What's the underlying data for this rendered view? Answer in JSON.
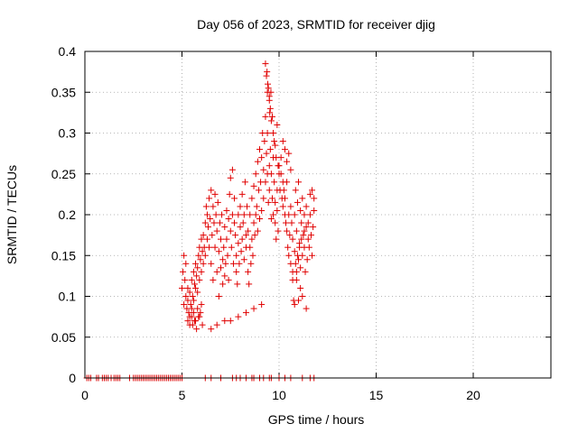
{
  "chart_data": {
    "type": "scatter",
    "title": "Day 056 of 2023, SRMTID for receiver djig",
    "xlabel": "GPS time / hours",
    "ylabel": "SRMTID / TECUs",
    "xlim": [
      0,
      24
    ],
    "ylim": [
      0,
      0.4
    ],
    "xticks": [
      0,
      5,
      10,
      15,
      20
    ],
    "xtick_labels": [
      "0",
      "5",
      "10",
      "15",
      "20"
    ],
    "yticks": [
      0,
      0.05,
      0.1,
      0.15,
      0.2,
      0.25,
      0.3,
      0.35,
      0.4
    ],
    "ytick_labels": [
      "0",
      "0.05",
      "0.1",
      "0.15",
      "0.2",
      "0.25",
      "0.3",
      "0.35",
      "0.4"
    ],
    "grid": true,
    "marker": "plus",
    "color": "#e00000",
    "series": [
      {
        "x": [
          0.1,
          0.2,
          0.3,
          0.6,
          0.7,
          0.9,
          1.0,
          1.1,
          1.2,
          1.35,
          1.5,
          1.6,
          1.7,
          1.8,
          2.3,
          2.5,
          2.6,
          2.7,
          2.8,
          2.9,
          3.0,
          3.1,
          3.2,
          3.3,
          3.4,
          3.5,
          3.6,
          3.7,
          3.8,
          3.9,
          4.0,
          4.1,
          4.2,
          4.3,
          4.4,
          4.5,
          4.6,
          4.7,
          4.8,
          4.9,
          5.0,
          6.2,
          6.5,
          7.0,
          7.6,
          7.8,
          8.0,
          8.3,
          8.6,
          8.7,
          9.0,
          9.2,
          9.5,
          9.6,
          10.0,
          10.3,
          10.6,
          11.2,
          11.6,
          11.8,
          5.0,
          5.05,
          5.1,
          5.1,
          5.15,
          5.2,
          5.2,
          5.25,
          5.3,
          5.3,
          5.35,
          5.4,
          5.4,
          5.45,
          5.5,
          5.5,
          5.55,
          5.6,
          5.6,
          5.65,
          5.7,
          5.7,
          5.75,
          5.8,
          5.8,
          5.85,
          5.9,
          5.9,
          5.95,
          6.0,
          6.0,
          6.05,
          6.1,
          6.1,
          6.15,
          6.2,
          6.2,
          6.25,
          6.3,
          6.3,
          6.35,
          6.4,
          6.4,
          6.45,
          6.5,
          6.5,
          6.55,
          6.6,
          6.6,
          6.65,
          6.7,
          6.7,
          6.75,
          6.8,
          6.8,
          6.85,
          6.9,
          6.9,
          6.95,
          7.0,
          7.0,
          7.05,
          7.1,
          7.1,
          7.15,
          7.2,
          7.2,
          7.25,
          7.3,
          7.3,
          7.35,
          7.4,
          7.4,
          7.45,
          7.5,
          7.5,
          7.55,
          7.6,
          7.6,
          7.65,
          7.7,
          7.7,
          7.75,
          7.8,
          7.8,
          7.85,
          7.9,
          7.9,
          7.95,
          8.0,
          8.0,
          8.05,
          8.1,
          8.1,
          8.15,
          8.2,
          8.2,
          8.25,
          8.3,
          8.3,
          8.35,
          8.4,
          8.4,
          8.45,
          8.5,
          8.5,
          8.55,
          8.6,
          8.6,
          8.65,
          8.7,
          8.7,
          8.75,
          8.8,
          8.8,
          8.85,
          8.9,
          8.9,
          8.95,
          9.0,
          9.0,
          9.05,
          9.1,
          9.1,
          9.15,
          9.2,
          9.2,
          9.25,
          9.3,
          9.3,
          9.35,
          9.4,
          9.4,
          9.45,
          9.5,
          9.5,
          9.55,
          9.6,
          9.6,
          9.65,
          9.7,
          9.7,
          9.75,
          9.8,
          9.8,
          9.85,
          9.9,
          9.9,
          9.95,
          10.0,
          10.0,
          10.05,
          10.1,
          10.1,
          10.15,
          10.2,
          10.2,
          10.25,
          10.3,
          10.3,
          10.35,
          10.4,
          10.4,
          10.45,
          10.5,
          10.5,
          10.55,
          10.6,
          10.6,
          10.65,
          10.7,
          10.7,
          10.75,
          10.8,
          10.8,
          10.85,
          10.9,
          10.9,
          10.95,
          11.0,
          11.0,
          11.05,
          11.1,
          11.1,
          11.15,
          11.2,
          11.2,
          11.25,
          11.3,
          11.3,
          11.35,
          11.4,
          11.4,
          11.45,
          11.5,
          11.5,
          11.55,
          11.6,
          11.6,
          11.65,
          11.7,
          11.7,
          11.75,
          11.8,
          11.8,
          9.3,
          9.35,
          9.4,
          9.45,
          9.5,
          9.55,
          9.6,
          9.65,
          9.7,
          9.75,
          9.8,
          9.85,
          9.9,
          9.95,
          10.2,
          10.3,
          10.4,
          10.5,
          10.6,
          9.38,
          9.42,
          9.5,
          9.58,
          9.52,
          5.3,
          5.4,
          5.5,
          5.6,
          5.7,
          5.8,
          5.9,
          6.0,
          5.55,
          5.65,
          5.75,
          5.85,
          5.95,
          6.05,
          6.5,
          6.8,
          7.2,
          7.5,
          7.9,
          8.3,
          8.7,
          9.1,
          10.8,
          11.0,
          11.2,
          11.4,
          10.9,
          11.1,
          10.7,
          10.85,
          10.95,
          11.05,
          11.15,
          11.3
        ],
        "y": [
          0,
          0,
          0,
          0,
          0,
          0,
          0,
          0,
          0,
          0,
          0,
          0,
          0,
          0,
          0,
          0,
          0,
          0,
          0,
          0,
          0,
          0,
          0,
          0,
          0,
          0,
          0,
          0,
          0,
          0,
          0,
          0,
          0,
          0,
          0,
          0,
          0,
          0,
          0,
          0,
          0,
          0,
          0,
          0,
          0,
          0,
          0,
          0,
          0,
          0,
          0,
          0,
          0,
          0,
          0,
          0,
          0,
          0,
          0,
          0,
          0.11,
          0.13,
          0.15,
          0.09,
          0.12,
          0.1,
          0.14,
          0.085,
          0.11,
          0.095,
          0.08,
          0.105,
          0.075,
          0.09,
          0.12,
          0.085,
          0.1,
          0.13,
          0.095,
          0.115,
          0.11,
          0.14,
          0.125,
          0.105,
          0.135,
          0.15,
          0.12,
          0.16,
          0.145,
          0.13,
          0.17,
          0.155,
          0.14,
          0.175,
          0.16,
          0.19,
          0.15,
          0.21,
          0.17,
          0.2,
          0.185,
          0.16,
          0.22,
          0.195,
          0.14,
          0.23,
          0.175,
          0.12,
          0.21,
          0.19,
          0.16,
          0.225,
          0.2,
          0.13,
          0.18,
          0.215,
          0.155,
          0.1,
          0.19,
          0.17,
          0.135,
          0.2,
          0.145,
          0.115,
          0.16,
          0.185,
          0.125,
          0.14,
          0.17,
          0.205,
          0.15,
          0.12,
          0.195,
          0.225,
          0.18,
          0.245,
          0.16,
          0.2,
          0.255,
          0.14,
          0.22,
          0.19,
          0.175,
          0.15,
          0.13,
          0.115,
          0.2,
          0.165,
          0.14,
          0.185,
          0.21,
          0.155,
          0.17,
          0.225,
          0.19,
          0.145,
          0.2,
          0.24,
          0.175,
          0.16,
          0.21,
          0.13,
          0.18,
          0.115,
          0.16,
          0.2,
          0.14,
          0.17,
          0.22,
          0.15,
          0.19,
          0.235,
          0.175,
          0.2,
          0.25,
          0.21,
          0.18,
          0.265,
          0.23,
          0.195,
          0.28,
          0.24,
          0.205,
          0.27,
          0.3,
          0.255,
          0.22,
          0.29,
          0.32,
          0.24,
          0.275,
          0.25,
          0.3,
          0.215,
          0.26,
          0.23,
          0.28,
          0.195,
          0.25,
          0.22,
          0.27,
          0.2,
          0.24,
          0.215,
          0.19,
          0.17,
          0.23,
          0.205,
          0.18,
          0.25,
          0.26,
          0.23,
          0.27,
          0.25,
          0.22,
          0.24,
          0.21,
          0.23,
          0.2,
          0.22,
          0.19,
          0.24,
          0.18,
          0.16,
          0.2,
          0.15,
          0.175,
          0.21,
          0.14,
          0.19,
          0.12,
          0.17,
          0.095,
          0.2,
          0.155,
          0.23,
          0.13,
          0.18,
          0.215,
          0.145,
          0.24,
          0.165,
          0.205,
          0.135,
          0.19,
          0.22,
          0.15,
          0.175,
          0.2,
          0.16,
          0.13,
          0.185,
          0.21,
          0.145,
          0.17,
          0.19,
          0.16,
          0.2,
          0.225,
          0.175,
          0.23,
          0.15,
          0.185,
          0.205,
          0.22,
          0.385,
          0.37,
          0.35,
          0.355,
          0.345,
          0.33,
          0.315,
          0.32,
          0.3,
          0.29,
          0.285,
          0.27,
          0.31,
          0.26,
          0.29,
          0.28,
          0.265,
          0.275,
          0.255,
          0.375,
          0.36,
          0.34,
          0.35,
          0.325,
          0.07,
          0.065,
          0.075,
          0.08,
          0.07,
          0.085,
          0.075,
          0.09,
          0.065,
          0.07,
          0.06,
          0.075,
          0.08,
          0.065,
          0.06,
          0.065,
          0.07,
          0.07,
          0.075,
          0.08,
          0.085,
          0.09,
          0.09,
          0.095,
          0.1,
          0.085,
          0.12,
          0.11,
          0.13,
          0.14,
          0.15,
          0.16,
          0.17,
          0.18
        ]
      }
    ]
  }
}
